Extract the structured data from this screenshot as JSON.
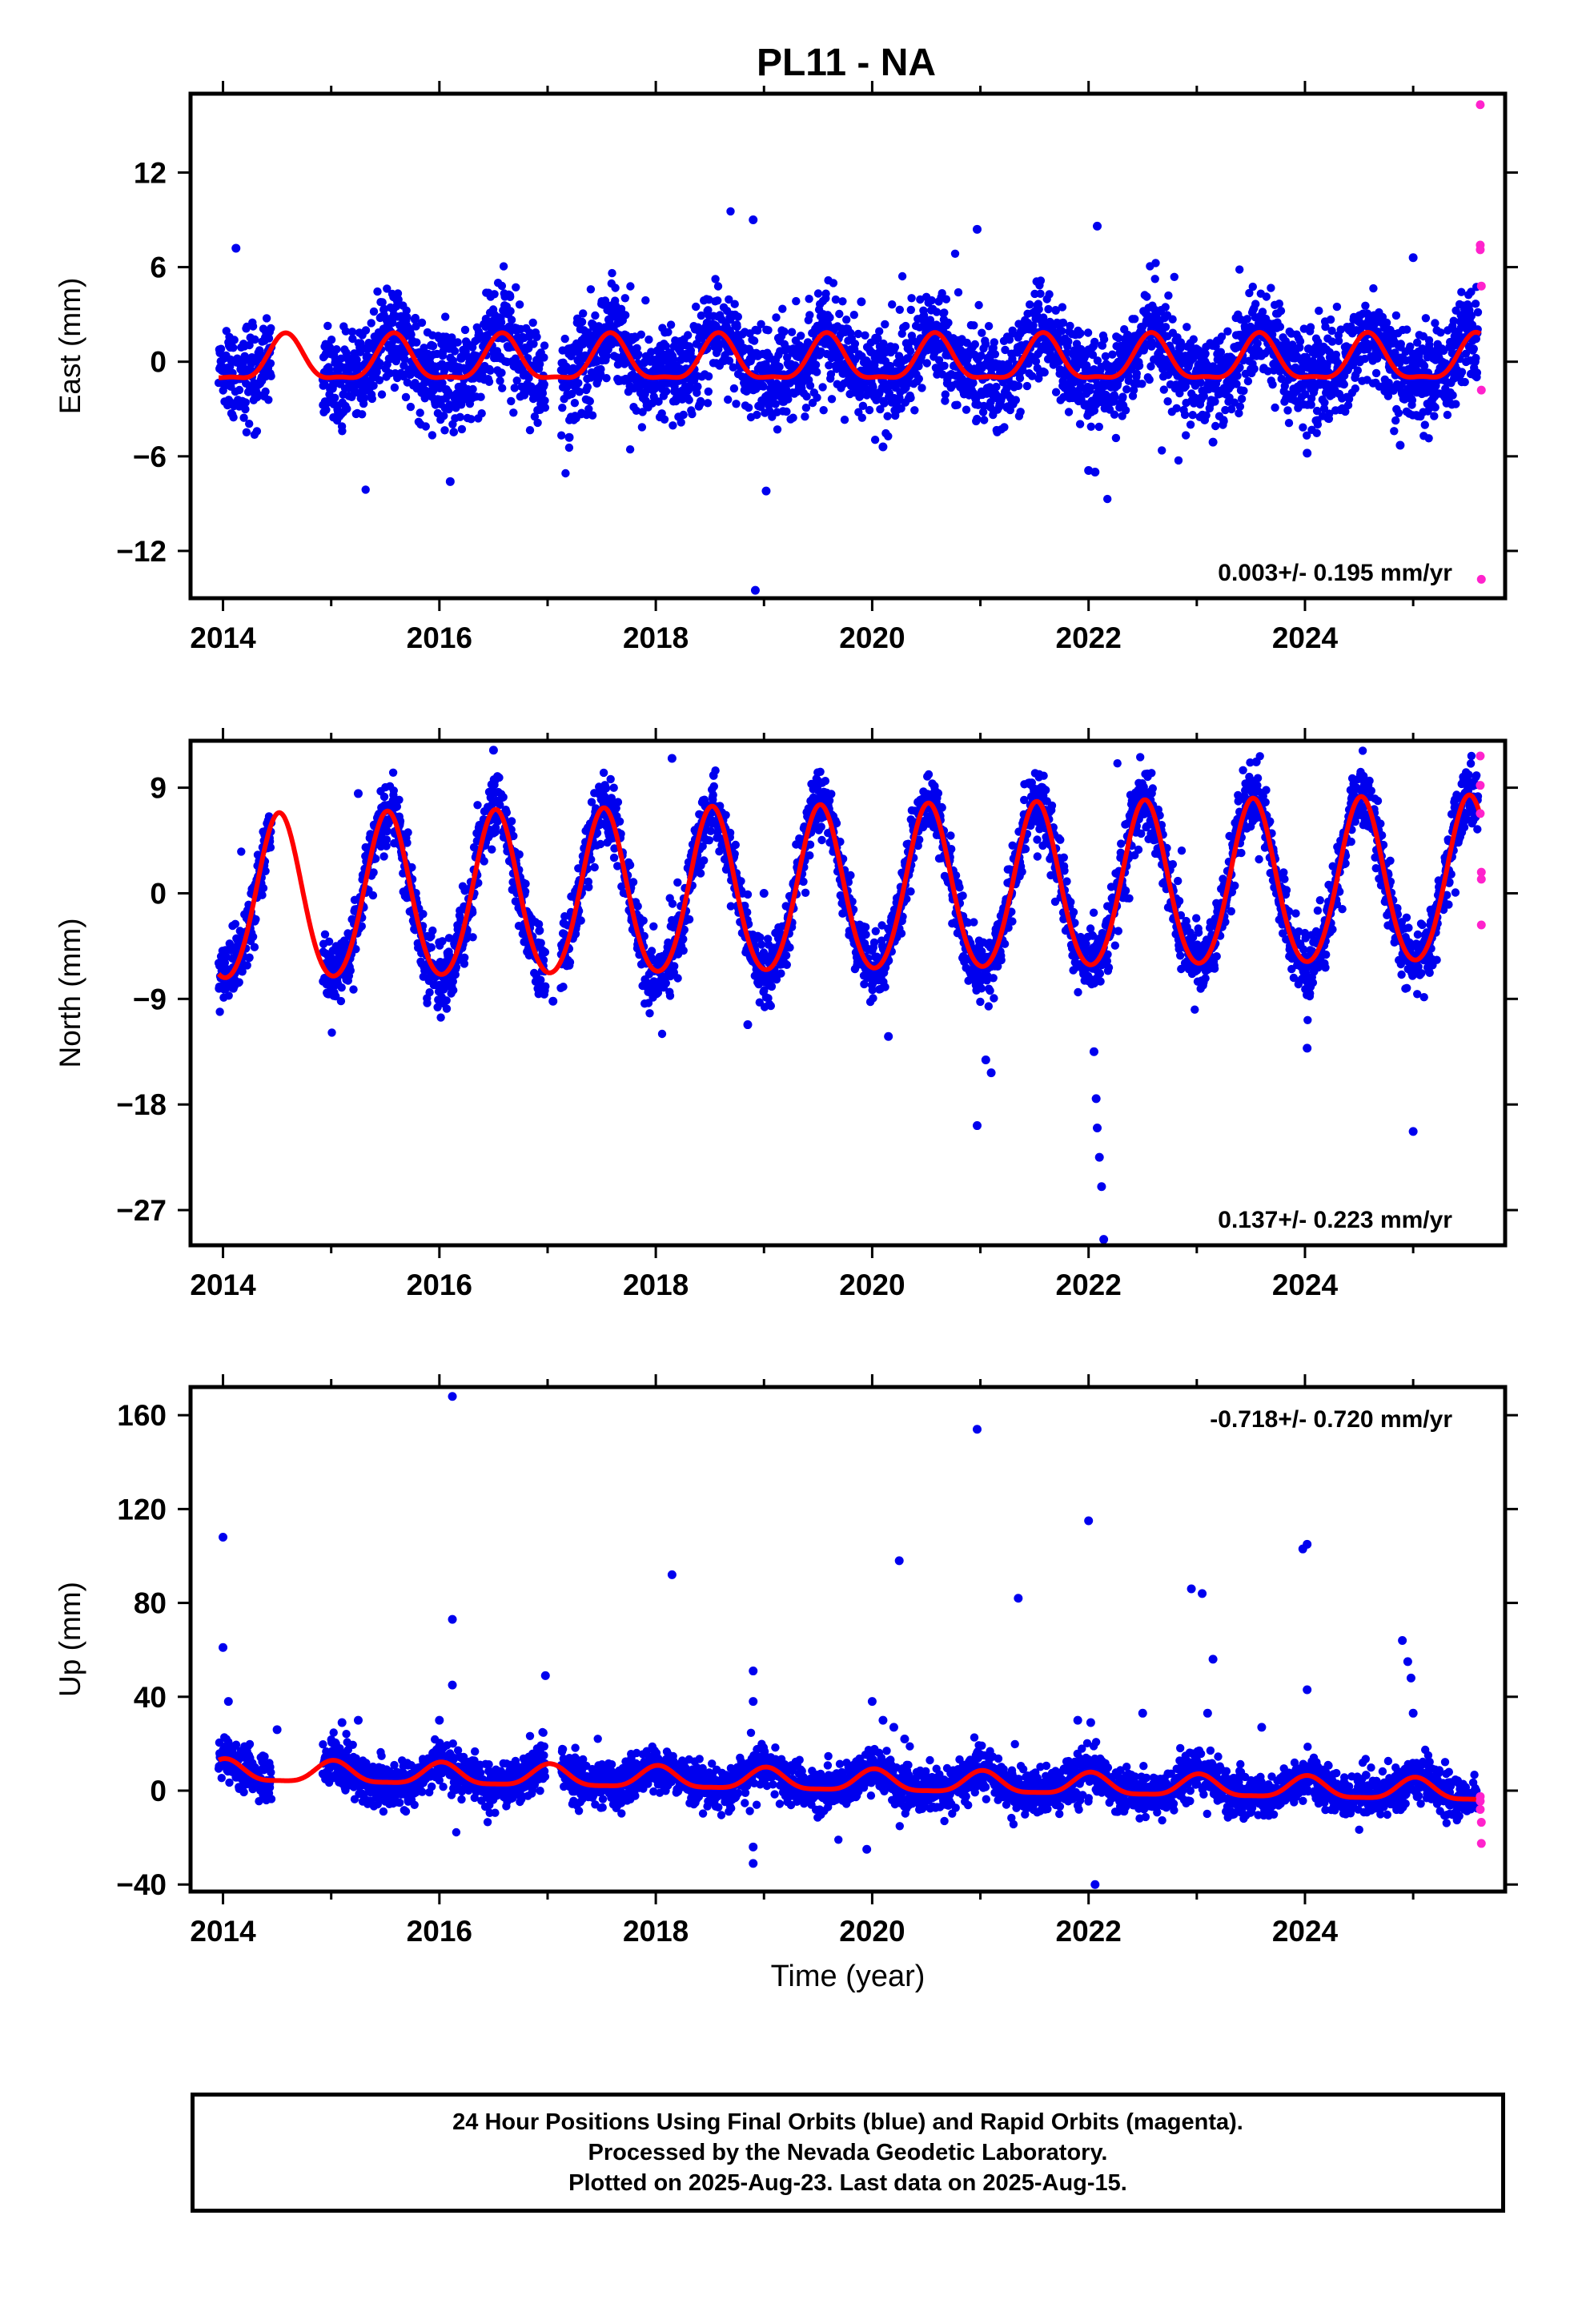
{
  "title": "PL11 - NA",
  "xlabel": "Time (year)",
  "footer": {
    "line1": "24 Hour Positions Using Final Orbits (blue) and Rapid Orbits (magenta).",
    "line2": "Processed by the Nevada Geodetic Laboratory.",
    "line3": "Plotted on 2025-Aug-23. Last data on 2025-Aug-15."
  },
  "colors": {
    "final": "#0000ee",
    "rapid": "#ff22cc",
    "model": "#ff0000",
    "axis": "#000000"
  },
  "chart_data": [
    {
      "type": "scatter",
      "name": "east",
      "ylabel": "East (mm)",
      "xlim": [
        2013.7,
        2025.85
      ],
      "ylim": [
        -15,
        17
      ],
      "yticks": [
        -12,
        -6,
        0,
        6,
        12
      ],
      "xticks": [
        2014,
        2016,
        2018,
        2020,
        2022,
        2024
      ],
      "rate_label": "0.003+/- 0.195 mm/yr",
      "rate_position": "bottom-right",
      "model": {
        "offset": 0.0,
        "trend": 0.003,
        "annual_amp": 1.4,
        "annual_phase_peak": 0.58,
        "semiannual_amp": 0.45
      },
      "scatter_sd": 1.5,
      "outliers": [
        [
          2014.12,
          7.2
        ],
        [
          2018.9,
          9.0
        ],
        [
          2018.92,
          -14.5
        ],
        [
          2019.02,
          -8.2
        ],
        [
          2020.97,
          8.4
        ],
        [
          2022.08,
          8.6
        ],
        [
          2016.1,
          -7.6
        ],
        [
          2022.0,
          -6.9
        ],
        [
          2022.06,
          -7.0
        ],
        [
          2020.1,
          -5.4
        ],
        [
          2024.02,
          -5.8
        ],
        [
          2024.88,
          -5.3
        ],
        [
          2025.0,
          6.6
        ],
        [
          2016.65,
          4.2
        ],
        [
          2017.2,
          -4.8
        ],
        [
          2023.15,
          -5.1
        ],
        [
          2019.9,
          3.8
        ]
      ],
      "rapid": [
        [
          2025.62,
          16.3
        ],
        [
          2025.62,
          7.4
        ],
        [
          2025.62,
          7.1
        ],
        [
          2025.63,
          4.8
        ],
        [
          2025.63,
          -1.8
        ],
        [
          2025.63,
          -13.8
        ]
      ]
    },
    {
      "type": "scatter",
      "name": "north",
      "ylabel": "North (mm)",
      "xlim": [
        2013.7,
        2025.85
      ],
      "ylim": [
        -30,
        13
      ],
      "yticks": [
        -27,
        -18,
        -9,
        0,
        9
      ],
      "xticks": [
        2014,
        2016,
        2018,
        2020,
        2022,
        2024
      ],
      "rate_label": "0.137+/- 0.223 mm/yr",
      "rate_position": "bottom-right",
      "model": {
        "offset": 0.0,
        "trend": 0.137,
        "annual_amp": 7.0,
        "annual_phase_peak": 0.52,
        "semiannual_amp": 0.6
      },
      "scatter_sd": 1.4,
      "outliers": [
        [
          2016.5,
          12.2
        ],
        [
          2018.15,
          11.5
        ],
        [
          2022.95,
          15.5
        ],
        [
          2024.5,
          13.8
        ],
        [
          2023.55,
          11.2
        ],
        [
          2017.05,
          -9.2
        ],
        [
          2018.85,
          -11.2
        ],
        [
          2020.15,
          -12.2
        ],
        [
          2020.97,
          -19.8
        ],
        [
          2021.05,
          -14.2
        ],
        [
          2021.1,
          -15.3
        ],
        [
          2022.05,
          -13.5
        ],
        [
          2022.07,
          -17.5
        ],
        [
          2022.08,
          -20.0
        ],
        [
          2022.1,
          -22.5
        ],
        [
          2022.12,
          -25.0
        ],
        [
          2022.14,
          -29.5
        ],
        [
          2024.02,
          -13.2
        ],
        [
          2025.0,
          -20.3
        ],
        [
          2019.0,
          0.0
        ],
        [
          2015.25,
          8.5
        ]
      ],
      "rapid": [
        [
          2025.62,
          11.7
        ],
        [
          2025.62,
          9.2
        ],
        [
          2025.62,
          6.8
        ],
        [
          2025.63,
          1.8
        ],
        [
          2025.63,
          1.2
        ],
        [
          2025.63,
          -2.7
        ]
      ]
    },
    {
      "type": "scatter",
      "name": "up",
      "ylabel": "Up (mm)",
      "xlim": [
        2013.7,
        2025.85
      ],
      "ylim": [
        -43,
        172
      ],
      "yticks": [
        -40,
        0,
        40,
        80,
        120,
        160
      ],
      "xticks": [
        2014,
        2016,
        2018,
        2020,
        2022,
        2024
      ],
      "rate_label": "-0.718+/- 0.720 mm/yr",
      "rate_position": "top-right",
      "model": {
        "offset": 3.8,
        "trend": -0.718,
        "annual_amp": 4.5,
        "annual_phase_peak": 0.02,
        "semiannual_amp": 1.2
      },
      "scatter_sd": 4.5,
      "outliers": [
        [
          2014.0,
          108
        ],
        [
          2014.0,
          61
        ],
        [
          2014.05,
          38
        ],
        [
          2016.12,
          168
        ],
        [
          2016.12,
          73
        ],
        [
          2016.12,
          45
        ],
        [
          2016.98,
          49
        ],
        [
          2018.15,
          92
        ],
        [
          2018.9,
          51
        ],
        [
          2018.9,
          38
        ],
        [
          2018.9,
          -24
        ],
        [
          2018.9,
          -31
        ],
        [
          2020.25,
          98
        ],
        [
          2020.97,
          154
        ],
        [
          2021.35,
          82
        ],
        [
          2022.0,
          115
        ],
        [
          2022.06,
          -40
        ],
        [
          2022.02,
          29
        ],
        [
          2022.95,
          86
        ],
        [
          2023.05,
          84
        ],
        [
          2023.15,
          56
        ],
        [
          2023.1,
          33
        ],
        [
          2023.98,
          103
        ],
        [
          2024.02,
          105
        ],
        [
          2024.02,
          43
        ],
        [
          2024.9,
          64
        ],
        [
          2024.95,
          55
        ],
        [
          2024.98,
          48
        ],
        [
          2025.0,
          33
        ],
        [
          2020.0,
          38
        ],
        [
          2020.1,
          30
        ],
        [
          2020.2,
          27
        ],
        [
          2020.3,
          22
        ],
        [
          2019.95,
          -25
        ],
        [
          2021.9,
          30
        ],
        [
          2022.5,
          33
        ],
        [
          2023.6,
          27
        ],
        [
          2016.0,
          30
        ],
        [
          2015.1,
          29
        ],
        [
          2015.25,
          30
        ],
        [
          2014.5,
          26
        ]
      ],
      "rapid": [
        [
          2025.62,
          -2.5
        ],
        [
          2025.62,
          -4.5
        ],
        [
          2025.62,
          -8.0
        ],
        [
          2025.63,
          -13.5
        ],
        [
          2025.63,
          -22.5
        ]
      ]
    }
  ]
}
